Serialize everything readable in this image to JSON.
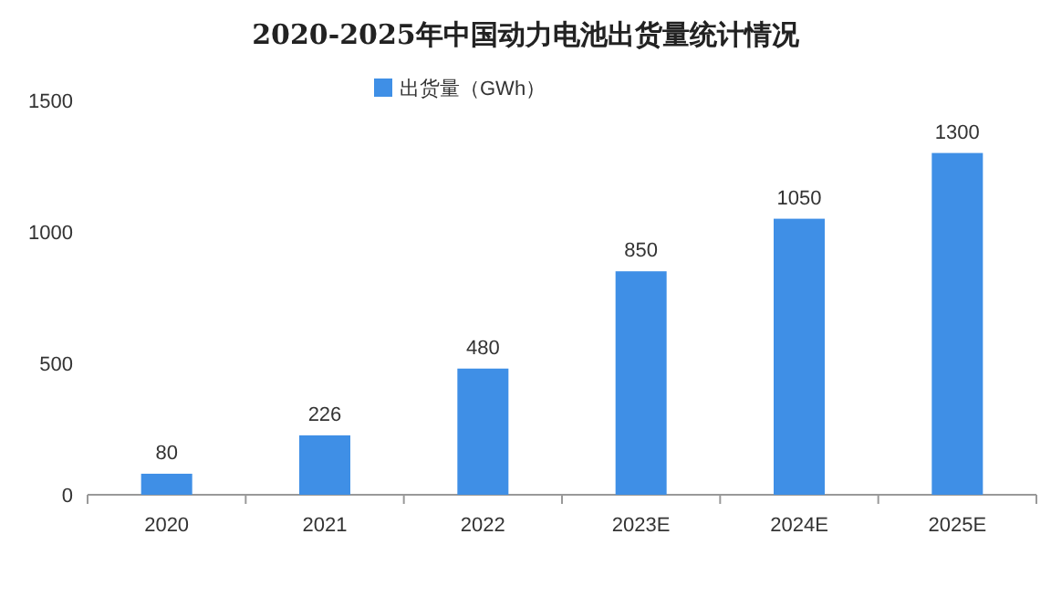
{
  "chart_data": {
    "type": "bar",
    "title": "2020-2025年中国动力电池出货量统计情况",
    "categories": [
      "2020",
      "2021",
      "2022",
      "2023E",
      "2024E",
      "2025E"
    ],
    "series": [
      {
        "name": "出货量（GWh）",
        "color": "#3f8fe6",
        "values": [
          80,
          226,
          480,
          850,
          1050,
          1300
        ]
      }
    ],
    "ylim": [
      0,
      1500
    ],
    "yticks": [
      0,
      500,
      1000,
      1500
    ],
    "data_labels": true,
    "legend": "top",
    "grid": false
  }
}
